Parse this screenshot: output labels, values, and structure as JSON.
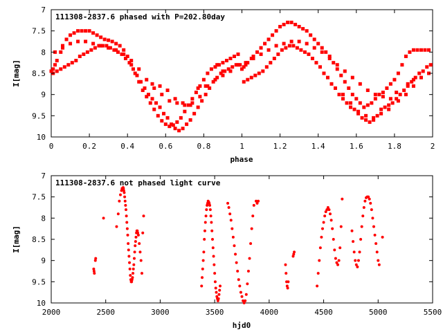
{
  "colors": {
    "points": "#ff0000",
    "frame": "#000000",
    "background": "#ffffff"
  },
  "chart_data": [
    {
      "type": "scatter",
      "title": "111308-2837.6 phased with P=202.80day",
      "xlabel": "phase",
      "ylabel": "I[mag]",
      "xlim": [
        0,
        2
      ],
      "ylim": [
        10,
        7
      ],
      "y_inverted": true,
      "grid": false,
      "x_ticks": [
        "0",
        "0.2",
        "0.4",
        "0.6",
        "0.8",
        "1",
        "1.2",
        "1.4",
        "1.6",
        "1.8",
        "2"
      ],
      "y_ticks": [
        "7",
        "7.5",
        "8",
        "8.5",
        "9",
        "9.5",
        "10"
      ],
      "marker": "filled-square",
      "series": [
        {
          "x": [
            0.0,
            0.01,
            0.02,
            0.03,
            0.05,
            0.06,
            0.08,
            0.1,
            0.12,
            0.14,
            0.16,
            0.18,
            0.2,
            0.22,
            0.24,
            0.26,
            0.28,
            0.3,
            0.32,
            0.34,
            0.36,
            0.38,
            0.4,
            0.42,
            0.44,
            0.46,
            0.48,
            0.5,
            0.52,
            0.54,
            0.56,
            0.58,
            0.6,
            0.62,
            0.64,
            0.66,
            0.68,
            0.7,
            0.72,
            0.74,
            0.76,
            0.78,
            0.8,
            0.82,
            0.84,
            0.86,
            0.88,
            0.9,
            0.92,
            0.94,
            0.96,
            0.98,
            0.01,
            0.03,
            0.05,
            0.07,
            0.09,
            0.11,
            0.13,
            0.15,
            0.17,
            0.19,
            0.21,
            0.23,
            0.25,
            0.27,
            0.29,
            0.31,
            0.33,
            0.35,
            0.37,
            0.39,
            0.41,
            0.43,
            0.45,
            0.47,
            0.49,
            0.51,
            0.53,
            0.55,
            0.57,
            0.59,
            0.61,
            0.63,
            0.65,
            0.67,
            0.69,
            0.71,
            0.73,
            0.75,
            0.77,
            0.79,
            0.81,
            0.83,
            0.85,
            0.87,
            0.89,
            0.91,
            0.93,
            0.95,
            0.97,
            0.99,
            0.02,
            0.06,
            0.1,
            0.14,
            0.18,
            0.22,
            0.26,
            0.3,
            0.34,
            0.38,
            0.42,
            0.46,
            0.5,
            0.54,
            0.58,
            0.62,
            0.66,
            0.7,
            0.74,
            0.78,
            0.82,
            0.86,
            0.9,
            0.94,
            0.98,
            0.53,
            0.57,
            0.61,
            0.65,
            0.69,
            0.73,
            0.77,
            0.81,
            0.87,
            0.9,
            1.0,
            1.01,
            1.02,
            1.03,
            1.05,
            1.06,
            1.08,
            1.1,
            1.12,
            1.14,
            1.16,
            1.18,
            1.2,
            1.22,
            1.24,
            1.26,
            1.28,
            1.3,
            1.32,
            1.34,
            1.36,
            1.38,
            1.4,
            1.42,
            1.44,
            1.46,
            1.48,
            1.5,
            1.52,
            1.54,
            1.56,
            1.58,
            1.6,
            1.62,
            1.64,
            1.66,
            1.68,
            1.7,
            1.72,
            1.74,
            1.76,
            1.78,
            1.8,
            1.82,
            1.84,
            1.86,
            1.88,
            1.9,
            1.92,
            1.94,
            1.96,
            1.98,
            1.01,
            1.03,
            1.05,
            1.07,
            1.09,
            1.11,
            1.13,
            1.15,
            1.17,
            1.19,
            1.21,
            1.23,
            1.25,
            1.27,
            1.29,
            1.31,
            1.33,
            1.35,
            1.37,
            1.39,
            1.41,
            1.43,
            1.45,
            1.47,
            1.49,
            1.51,
            1.53,
            1.55,
            1.57,
            1.59,
            1.61,
            1.63,
            1.65,
            1.67,
            1.69,
            1.71,
            1.73,
            1.75,
            1.77,
            1.79,
            1.81,
            1.83,
            1.85,
            1.87,
            1.89,
            1.91,
            1.93,
            1.95,
            1.97,
            1.99,
            1.02,
            1.06,
            1.1,
            1.14,
            1.18,
            1.22,
            1.26,
            1.3,
            1.34,
            1.38,
            1.42,
            1.46,
            1.5,
            1.54,
            1.58,
            1.62,
            1.66,
            1.7,
            1.74,
            1.78,
            1.82,
            1.86,
            1.9,
            1.94,
            1.98,
            1.53,
            1.57,
            1.61,
            1.65,
            1.69,
            1.73,
            1.77,
            1.81,
            1.87,
            1.9
          ],
          "y": [
            8.45,
            8.4,
            8.3,
            8.2,
            8.0,
            7.85,
            7.7,
            7.6,
            7.55,
            7.5,
            7.5,
            7.5,
            7.5,
            7.55,
            7.6,
            7.65,
            7.7,
            7.72,
            7.75,
            7.8,
            7.85,
            7.95,
            8.1,
            8.3,
            8.5,
            8.7,
            8.9,
            9.05,
            9.2,
            9.35,
            9.5,
            9.62,
            9.7,
            9.75,
            9.72,
            9.65,
            9.55,
            9.4,
            9.25,
            9.1,
            8.95,
            8.8,
            8.65,
            8.5,
            8.4,
            8.35,
            8.3,
            8.25,
            8.2,
            8.15,
            8.1,
            8.05,
            8.5,
            8.45,
            8.4,
            8.35,
            8.3,
            8.25,
            8.2,
            8.1,
            8.05,
            8.0,
            7.95,
            7.9,
            7.85,
            7.85,
            7.85,
            7.9,
            7.95,
            8.0,
            8.05,
            8.15,
            8.25,
            8.4,
            8.55,
            8.7,
            8.85,
            9.0,
            9.1,
            9.2,
            9.3,
            9.45,
            9.55,
            9.7,
            9.8,
            9.85,
            9.8,
            9.7,
            9.6,
            9.45,
            9.3,
            9.15,
            9.0,
            8.85,
            8.7,
            8.6,
            8.5,
            8.45,
            8.4,
            8.35,
            8.3,
            8.3,
            8.0,
            7.9,
            7.8,
            7.75,
            7.75,
            7.8,
            7.85,
            7.9,
            7.95,
            8.05,
            8.2,
            8.4,
            8.65,
            8.85,
            9.0,
            9.15,
            9.2,
            9.25,
            9.2,
            9.05,
            8.8,
            8.65,
            8.55,
            8.45,
            8.3,
            8.75,
            8.8,
            8.9,
            9.1,
            9.2,
            9.25,
            8.85,
            8.8,
            8.3,
            8.45,
            8.4,
            8.35,
            8.3,
            8.25,
            8.15,
            8.1,
            8.0,
            7.9,
            7.8,
            7.7,
            7.6,
            7.5,
            7.4,
            7.35,
            7.3,
            7.3,
            7.35,
            7.4,
            7.45,
            7.5,
            7.6,
            7.7,
            7.8,
            7.9,
            8.0,
            8.1,
            8.25,
            8.4,
            8.55,
            8.7,
            8.85,
            9.0,
            9.1,
            9.2,
            9.3,
            9.25,
            9.2,
            9.1,
            9.0,
            8.95,
            8.85,
            8.75,
            8.65,
            8.5,
            8.3,
            8.1,
            8.0,
            7.95,
            7.95,
            7.95,
            7.95,
            7.95,
            8.7,
            8.65,
            8.6,
            8.55,
            8.5,
            8.45,
            8.35,
            8.25,
            8.15,
            8.05,
            7.95,
            7.9,
            7.85,
            7.85,
            7.9,
            7.95,
            8.0,
            8.05,
            8.15,
            8.25,
            8.35,
            8.5,
            8.6,
            8.75,
            8.85,
            9.0,
            9.1,
            9.2,
            9.3,
            9.35,
            9.45,
            9.55,
            9.6,
            9.65,
            9.6,
            9.5,
            9.35,
            9.3,
            9.25,
            9.2,
            9.1,
            9.0,
            8.9,
            8.8,
            8.7,
            8.6,
            8.5,
            8.45,
            8.35,
            8.3,
            8.25,
            8.15,
            8.05,
            7.95,
            7.85,
            7.8,
            7.75,
            7.75,
            7.8,
            7.9,
            8.0,
            8.15,
            8.3,
            8.45,
            8.6,
            8.75,
            8.9,
            9.0,
            9.05,
            9.1,
            9.15,
            9.0,
            8.8,
            8.6,
            8.5,
            9.0,
            9.2,
            9.4,
            9.5,
            9.55,
            9.45,
            9.35,
            8.95,
            8.75,
            8.65
          ]
        }
      ]
    },
    {
      "type": "scatter",
      "title": "111308-2837.6 not phased light curve",
      "xlabel": "hjd0",
      "ylabel": "I[mag]",
      "xlim": [
        2000,
        5500
      ],
      "ylim": [
        10,
        7
      ],
      "y_inverted": true,
      "grid": false,
      "x_ticks": [
        "2000",
        "2500",
        "3000",
        "3500",
        "4000",
        "4500",
        "5000",
        "5500"
      ],
      "y_ticks": [
        "7",
        "7.5",
        "8",
        "8.5",
        "9",
        "9.5",
        "10"
      ],
      "marker": "filled-circle",
      "series": [
        {
          "x": [
            2390,
            2393,
            2396,
            2405,
            2408,
            2480,
            2600,
            2615,
            2625,
            2635,
            2645,
            2650,
            2655,
            2660,
            2663,
            2666,
            2670,
            2674,
            2678,
            2682,
            2686,
            2690,
            2694,
            2698,
            2702,
            2706,
            2710,
            2714,
            2718,
            2722,
            2726,
            2730,
            2734,
            2738,
            2742,
            2746,
            2750,
            2754,
            2758,
            2762,
            2766,
            2770,
            2774,
            2778,
            2782,
            2786,
            2790,
            2794,
            2800,
            2808,
            2816,
            2824,
            2832,
            2840,
            2848,
            3380,
            3385,
            3390,
            3395,
            3400,
            3405,
            3410,
            3415,
            3420,
            3425,
            3430,
            3435,
            3440,
            3445,
            3450,
            3455,
            3460,
            3465,
            3470,
            3475,
            3480,
            3485,
            3490,
            3495,
            3500,
            3505,
            3510,
            3515,
            3520,
            3525,
            3530,
            3535,
            3540,
            3545,
            3550,
            3620,
            3630,
            3640,
            3650,
            3660,
            3670,
            3680,
            3690,
            3700,
            3710,
            3720,
            3730,
            3740,
            3750,
            3760,
            3770,
            3780,
            3790,
            3800,
            3810,
            3820,
            3830,
            3840,
            3850,
            3860,
            3880,
            3890,
            3900,
            4150,
            4155,
            4160,
            4165,
            4170,
            4175,
            4220,
            4225,
            4230,
            4440,
            4450,
            4460,
            4470,
            4480,
            4490,
            4500,
            4510,
            4520,
            4530,
            4540,
            4550,
            4560,
            4570,
            4580,
            4590,
            4600,
            4610,
            4620,
            4630,
            4640,
            4650,
            4660,
            4670,
            4760,
            4770,
            4780,
            4790,
            4800,
            4810,
            4820,
            4830,
            4840,
            4850,
            4860,
            4870,
            4880,
            4890,
            4900,
            4910,
            4920,
            4930,
            4940,
            4950,
            4960,
            4970,
            4980,
            4990,
            5000,
            5010,
            5040
          ],
          "y": [
            9.2,
            9.25,
            9.3,
            9.0,
            8.95,
            8.0,
            8.2,
            7.9,
            7.6,
            7.45,
            7.35,
            7.3,
            7.3,
            7.28,
            7.3,
            7.35,
            7.4,
            7.5,
            7.6,
            7.7,
            7.8,
            7.95,
            8.1,
            8.25,
            8.4,
            8.6,
            8.75,
            8.9,
            9.05,
            9.2,
            9.35,
            9.45,
            9.5,
            9.5,
            9.45,
            9.4,
            9.3,
            9.2,
            9.1,
            8.95,
            8.8,
            8.65,
            8.55,
            8.45,
            8.35,
            8.3,
            8.3,
            8.35,
            8.4,
            8.6,
            8.8,
            9.0,
            9.3,
            8.35,
            7.95,
            9.6,
            9.4,
            9.2,
            9.0,
            8.8,
            8.5,
            8.3,
            8.1,
            7.95,
            7.8,
            7.7,
            7.65,
            7.6,
            7.62,
            7.65,
            7.7,
            7.8,
            7.95,
            8.1,
            8.3,
            8.5,
            8.7,
            8.9,
            9.1,
            9.3,
            9.5,
            9.65,
            9.75,
            9.85,
            9.9,
            9.95,
            9.9,
            9.8,
            9.7,
            9.6,
            7.65,
            7.75,
            7.9,
            8.05,
            8.25,
            8.45,
            8.65,
            8.85,
            9.05,
            9.25,
            9.45,
            9.6,
            9.75,
            9.85,
            9.95,
            10.0,
            9.95,
            9.8,
            9.55,
            9.25,
            8.95,
            8.6,
            8.25,
            7.95,
            7.7,
            7.6,
            7.65,
            7.6,
            9.1,
            9.3,
            9.5,
            9.6,
            9.65,
            9.5,
            8.9,
            8.85,
            8.8,
            9.6,
            9.3,
            9.0,
            8.7,
            8.45,
            8.25,
            8.1,
            7.95,
            7.85,
            7.8,
            7.75,
            7.8,
            7.9,
            8.05,
            8.25,
            8.5,
            8.75,
            8.95,
            9.05,
            9.1,
            9.0,
            8.7,
            8.2,
            7.55,
            8.3,
            8.55,
            8.8,
            9.0,
            9.1,
            9.15,
            9.0,
            8.8,
            8.5,
            8.2,
            7.95,
            7.75,
            7.6,
            7.52,
            7.5,
            7.5,
            7.55,
            7.65,
            7.8,
            8.0,
            8.2,
            8.4,
            8.6,
            8.8,
            9.0,
            9.1,
            8.45
          ]
        }
      ]
    }
  ]
}
